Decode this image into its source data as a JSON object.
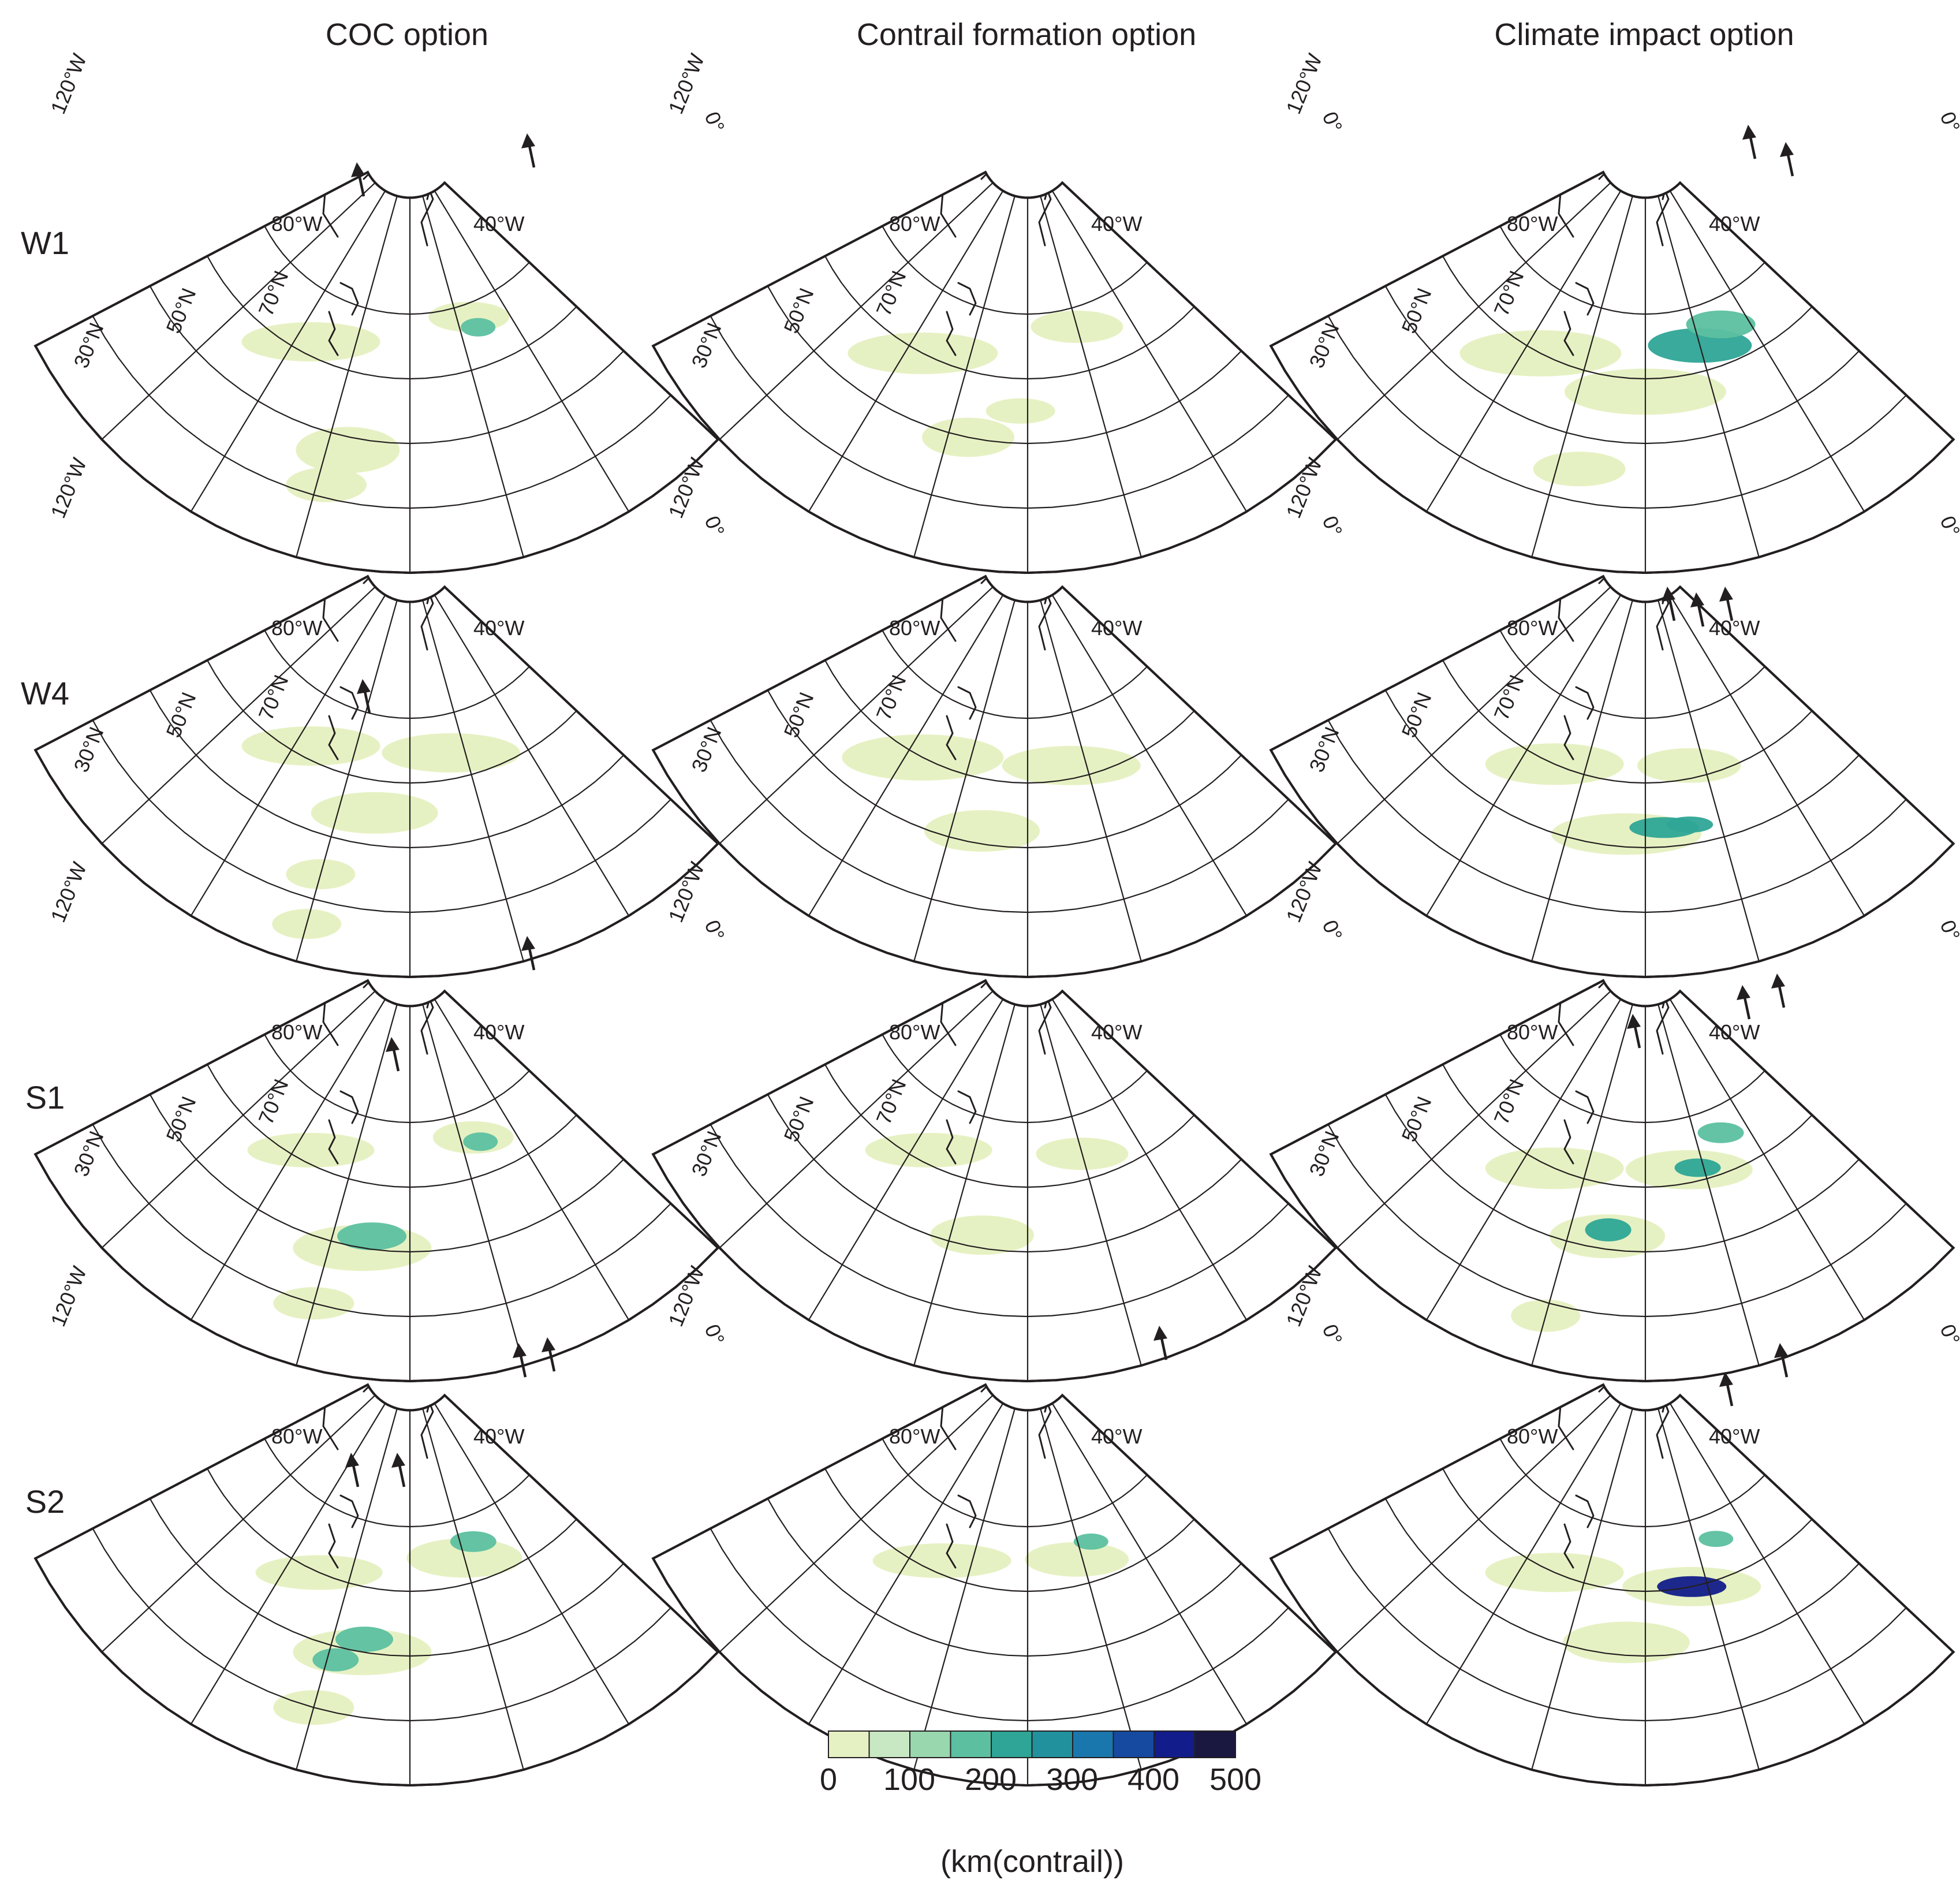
{
  "columns": [
    "COC option",
    "Contrail formation option",
    "Climate impact option"
  ],
  "rows": [
    "W1",
    "W4",
    "S1",
    "S2"
  ],
  "map_labels": {
    "lat": [
      "30°N",
      "50°N",
      "70°N"
    ],
    "lon": [
      "120°W",
      "80°W",
      "40°W",
      "0°"
    ]
  },
  "colorbar": {
    "colors": [
      "#e6f1c3",
      "#c8e8c3",
      "#99d7ae",
      "#5cc0a0",
      "#2ea596",
      "#21919e",
      "#1a77ad",
      "#154aa0",
      "#121c8a",
      "#1a1740"
    ],
    "tick_labels": [
      "0",
      "100",
      "200",
      "300",
      "400",
      "500"
    ],
    "unit": "(km(contrail))"
  },
  "colors": {
    "text": "#231f20",
    "frame": "#231f20"
  }
}
